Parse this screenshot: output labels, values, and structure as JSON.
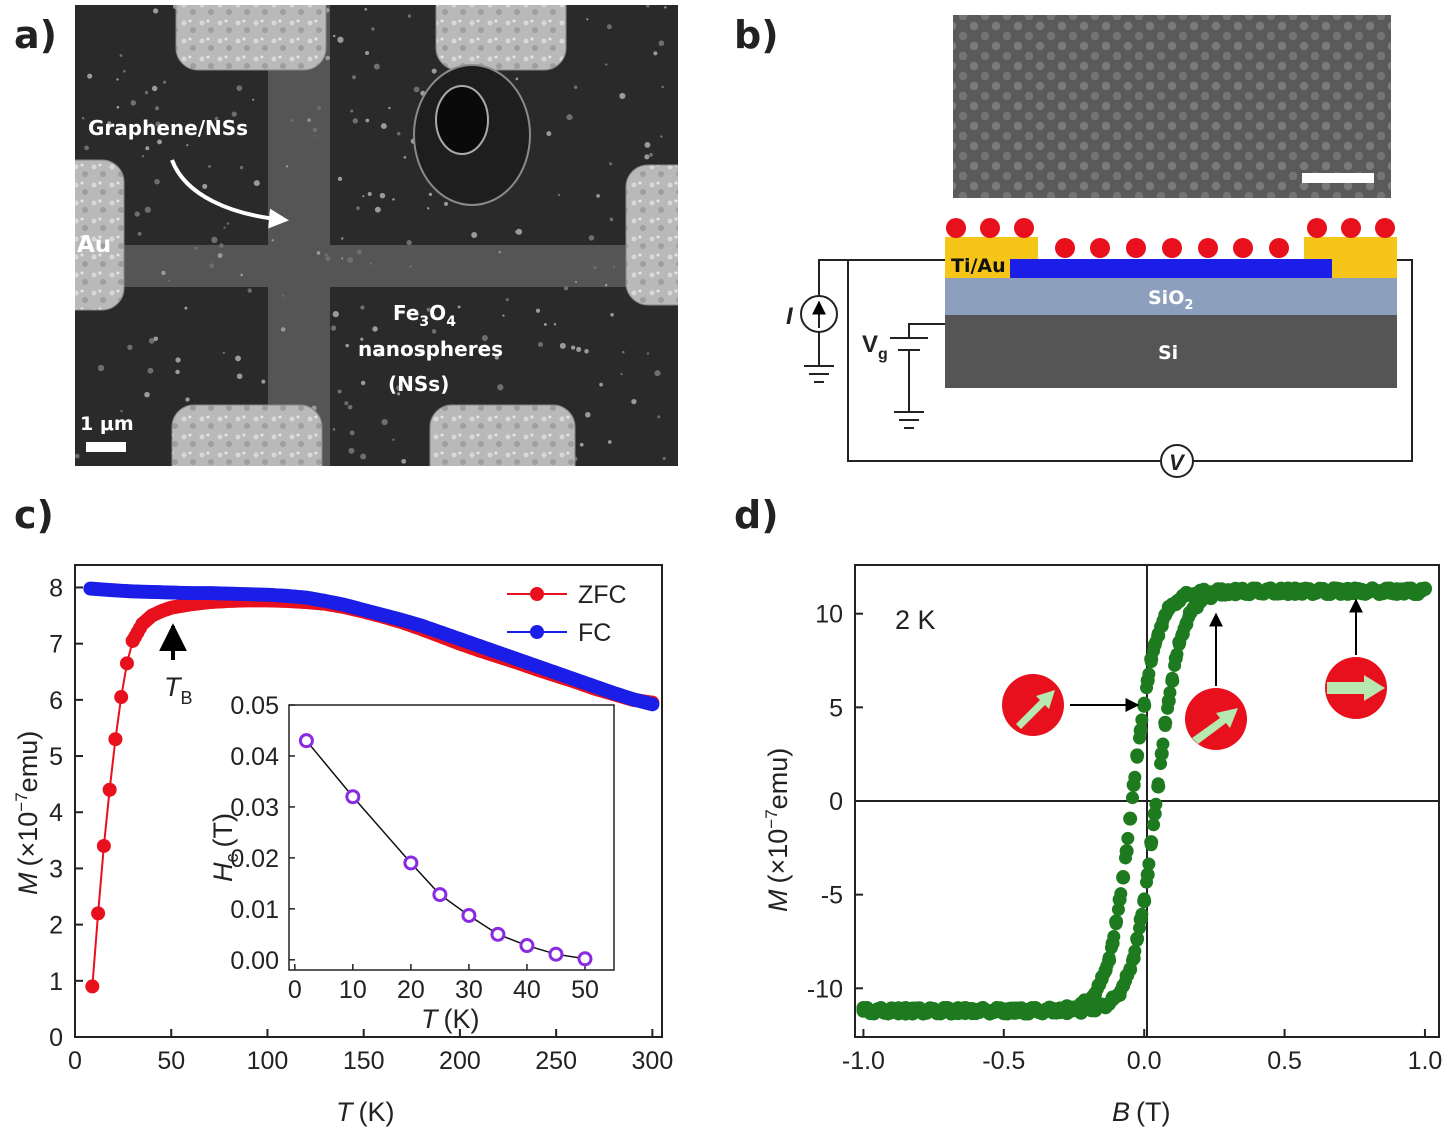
{
  "labels": {
    "a": "a)",
    "b": "b)",
    "c": "c)",
    "d": "d)"
  },
  "panel_a": {
    "annot_graphene": "Graphene/NSs",
    "annot_au": "Au",
    "annot_ns_1": "Fe",
    "annot_ns_sub3": "3",
    "annot_ns_O": "O",
    "annot_ns_sub4": "4",
    "annot_ns_2": "nanospheres",
    "annot_ns_3": "(NSs)",
    "scalebar": "1 μm"
  },
  "panel_b": {
    "tiau": "Ti/Au",
    "sio2": "SiO",
    "sio2_sub": "2",
    "si": "Si",
    "current": "I",
    "vg": "V",
    "vg_sub": "g",
    "voltmeter": "V",
    "colors": {
      "contact": "#f5c518",
      "graphene": "#1a1ee6",
      "sio2": "#8c9fbd",
      "si": "#555555",
      "nanosphere": "#e8101c"
    }
  },
  "chart_data": [
    {
      "panel": "c",
      "type": "scatter",
      "xlabel": "T",
      "xlabel_unit": "(K)",
      "ylabel": "M",
      "ylabel_unit": "(×10",
      "ylabel_exp": "−7",
      "ylabel_end": "emu)",
      "xlim": [
        0,
        305
      ],
      "ylim": [
        0,
        8.4
      ],
      "xticks": [
        0,
        50,
        100,
        150,
        200,
        250,
        300
      ],
      "yticks": [
        0,
        1,
        2,
        3,
        4,
        5,
        6,
        7,
        8
      ],
      "annotation": "T",
      "annotation_sub": "B",
      "series": [
        {
          "name": "ZFC",
          "color": "#e8101c",
          "x": [
            9,
            12,
            15,
            18,
            21,
            24,
            27,
            30,
            35,
            40,
            45,
            50,
            60,
            70,
            80,
            90,
            100,
            110,
            120,
            130,
            140,
            150,
            160,
            170,
            180,
            190,
            200,
            210,
            220,
            230,
            240,
            250,
            260,
            270,
            280,
            290,
            300
          ],
          "y": [
            0.9,
            2.2,
            3.4,
            4.4,
            5.3,
            6.05,
            6.65,
            7.05,
            7.35,
            7.5,
            7.58,
            7.64,
            7.7,
            7.74,
            7.76,
            7.77,
            7.77,
            7.76,
            7.74,
            7.71,
            7.65,
            7.57,
            7.48,
            7.38,
            7.26,
            7.13,
            7.0,
            6.88,
            6.77,
            6.66,
            6.54,
            6.43,
            6.32,
            6.2,
            6.1,
            6.0,
            5.95
          ]
        },
        {
          "name": "FC",
          "color": "#1a1ee6",
          "x": [
            8,
            20,
            30,
            40,
            50,
            60,
            70,
            80,
            90,
            100,
            110,
            120,
            130,
            140,
            150,
            160,
            170,
            180,
            190,
            200,
            210,
            220,
            230,
            240,
            250,
            260,
            270,
            280,
            290,
            300
          ],
          "y": [
            7.98,
            7.95,
            7.93,
            7.92,
            7.91,
            7.9,
            7.9,
            7.89,
            7.88,
            7.87,
            7.85,
            7.82,
            7.76,
            7.69,
            7.6,
            7.51,
            7.42,
            7.32,
            7.2,
            7.08,
            6.96,
            6.84,
            6.72,
            6.6,
            6.48,
            6.36,
            6.24,
            6.12,
            6.01,
            5.92
          ]
        }
      ],
      "inset": {
        "type": "line",
        "xlabel": "T",
        "xlabel_unit": "(K)",
        "ylabel": "H",
        "ylabel_sub": "c",
        "ylabel_unit": "(T)",
        "xlim": [
          -1,
          55
        ],
        "ylim": [
          -0.002,
          0.05
        ],
        "xticks": [
          0,
          10,
          20,
          30,
          40,
          50
        ],
        "yticks": [
          "0.00",
          "0.01",
          "0.02",
          "0.03",
          "0.04",
          "0.05"
        ],
        "ytick_values": [
          0,
          0.01,
          0.02,
          0.03,
          0.04,
          0.05
        ],
        "color": "#8a2be2",
        "x": [
          2,
          10,
          20,
          25,
          30,
          35,
          40,
          45,
          50
        ],
        "y": [
          0.043,
          0.032,
          0.019,
          0.0128,
          0.0087,
          0.005,
          0.0028,
          0.0011,
          0.0002
        ]
      }
    },
    {
      "panel": "d",
      "type": "scatter",
      "xlabel": "B",
      "xlabel_unit": "(T)",
      "ylabel": "M",
      "ylabel_unit": "(×10",
      "ylabel_exp": "−7",
      "ylabel_end": "emu)",
      "xlim": [
        -1.03,
        1.05
      ],
      "ylim": [
        -12.6,
        12.6
      ],
      "xticks": [
        "-1.0",
        "-0.5",
        "0.0",
        "0.5",
        "1.0"
      ],
      "xtick_values": [
        -1,
        -0.5,
        0,
        0.5,
        1
      ],
      "yticks": [
        "-10",
        "-5",
        "0",
        "5",
        "10"
      ],
      "ytick_values": [
        -10,
        -5,
        0,
        5,
        10
      ],
      "annotation": "2 K",
      "color": "#1e7a1e",
      "Ms": 11.2,
      "Hc": 0.043,
      "width": 0.085
    }
  ]
}
